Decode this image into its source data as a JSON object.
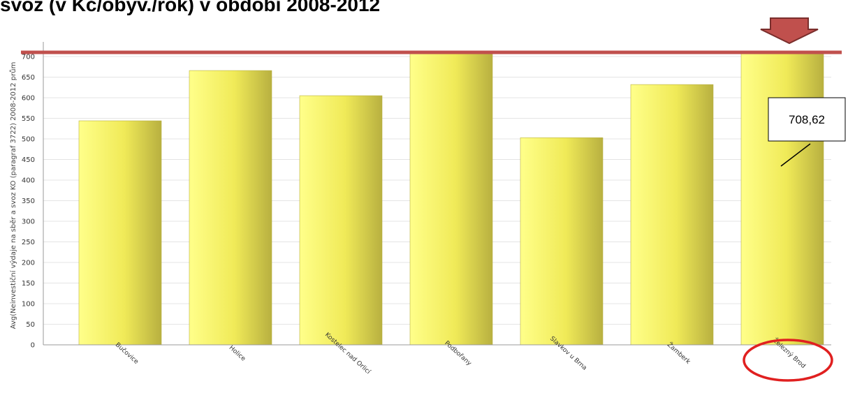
{
  "page": {
    "title": "svoz (v Kč/obyv./rok) v období 2008-2012"
  },
  "chart_data": {
    "type": "bar",
    "title": "",
    "xlabel": "",
    "ylabel": "Avg(Neinvestiční výdaje na sběr a svoz KO (paragraf 3722) 2008-2012 prům",
    "categories": [
      "Bučovice",
      "Holice",
      "Kostelec nad Orlicí",
      "Podbořany",
      "Slavkov u Brna",
      "Žamberk",
      "Železný Brod"
    ],
    "values": [
      544,
      666,
      605,
      712,
      503,
      632,
      708.62
    ],
    "ylim": [
      0,
      730
    ],
    "yticks": [
      0,
      50,
      100,
      150,
      200,
      250,
      300,
      350,
      400,
      450,
      500,
      550,
      600,
      650,
      700
    ],
    "grid": true,
    "reference_line": 708.62,
    "callout_label": "708,62",
    "highlighted_category": "Železný Brod",
    "colors": {
      "bar": "#f5f060",
      "bar_dark": "#c8c048",
      "reference_line": "#c0504d",
      "arrow": "#c0504d",
      "arrow_stroke": "#7a2e2c",
      "circle": "#e02020"
    }
  }
}
